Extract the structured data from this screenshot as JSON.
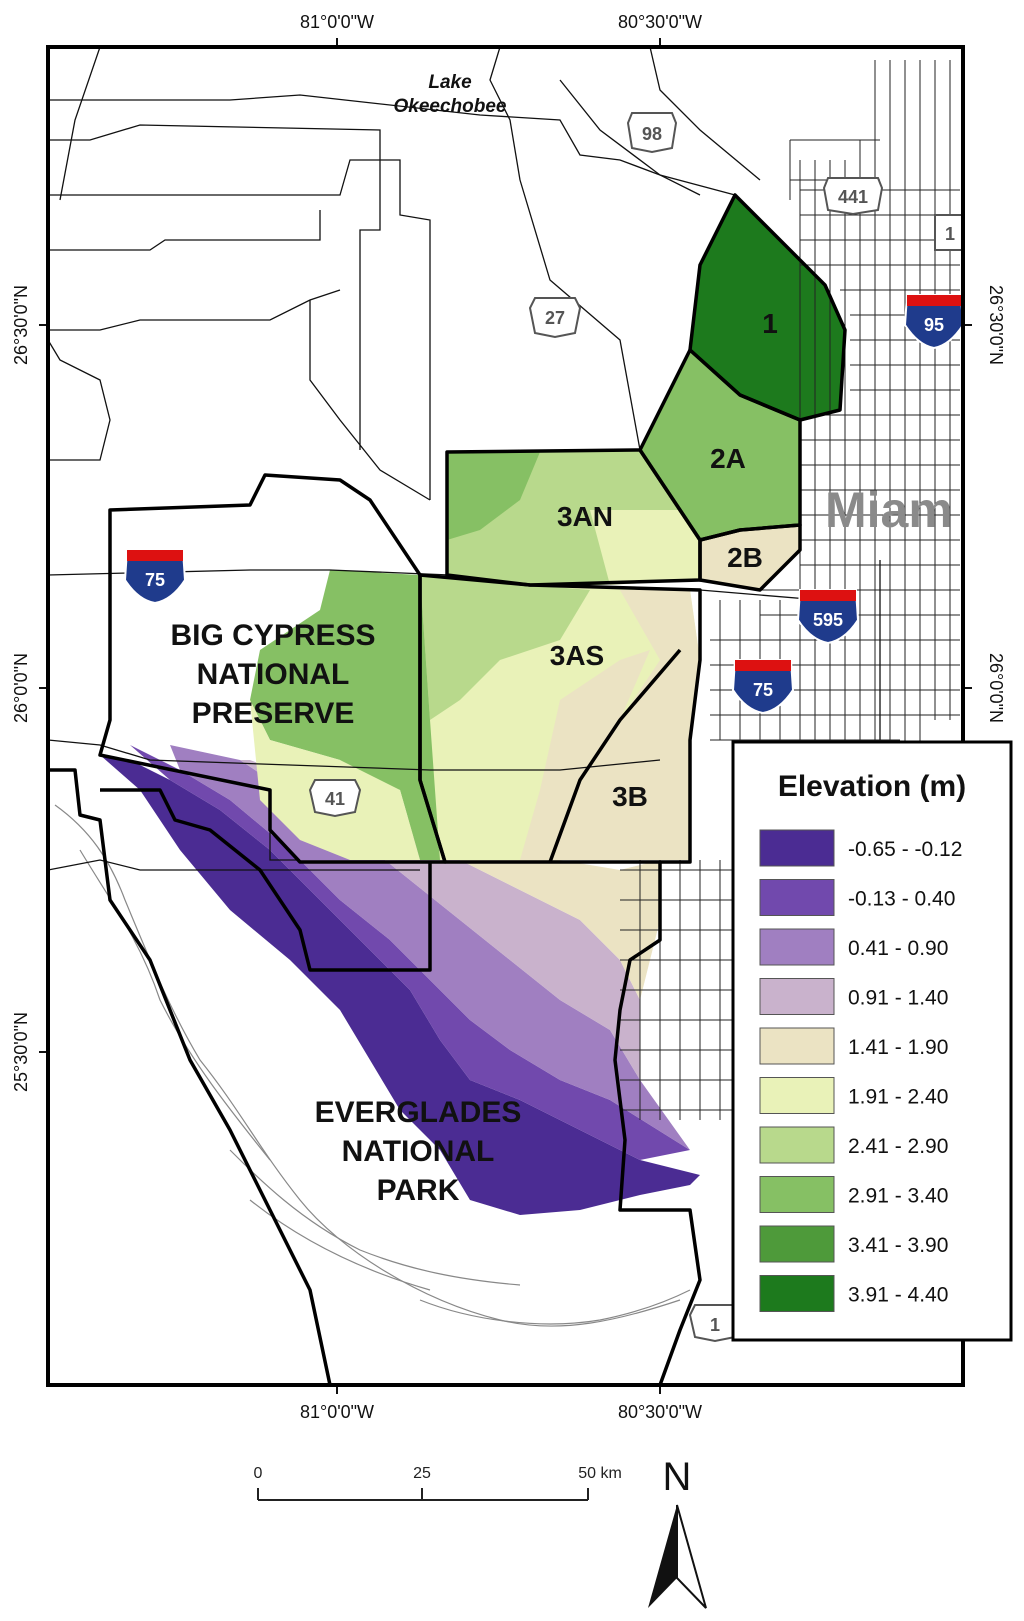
{
  "coords": {
    "lon_top_1": "81°0'0\"W",
    "lon_top_2": "80°30'0\"W",
    "lon_bot_1": "81°0'0\"W",
    "lon_bot_2": "80°30'0\"W",
    "lat_left_1": "26°30'0\"N",
    "lat_left_2": "26°0'0\"N",
    "lat_left_3": "25°30'0\"N",
    "lat_right_1": "26°30'0\"N",
    "lat_right_2": "26°0'0\"N"
  },
  "places": {
    "lake_line1": "Lake",
    "lake_line2": "Okeechobee",
    "miami": "Miam",
    "big_cypress_1": "BIG CYPRESS",
    "big_cypress_2": "NATIONAL",
    "big_cypress_3": "PRESERVE",
    "everglades_1": "EVERGLADES",
    "everglades_2": "NATIONAL",
    "everglades_3": "PARK"
  },
  "units": {
    "u1": "1",
    "u2a": "2A",
    "u2b": "2B",
    "u3an": "3AN",
    "u3as": "3AS",
    "u3b": "3B"
  },
  "highways": {
    "us98": "98",
    "us441": "441",
    "us27": "27",
    "us41": "41",
    "us1_north": "1",
    "us1_south": "1",
    "i95": "95",
    "i595": "595",
    "i75_west": "75",
    "i75_east": "75"
  },
  "legend": {
    "title": "Elevation (m)",
    "classes": [
      {
        "label": "-0.65 - -0.12",
        "color": "#4b2c93"
      },
      {
        "label": "-0.13 - 0.40",
        "color": "#7149ad"
      },
      {
        "label": "0.41 - 0.90",
        "color": "#a07fc1"
      },
      {
        "label": "0.91 - 1.40",
        "color": "#c9b2cc"
      },
      {
        "label": "1.41 - 1.90",
        "color": "#ebe3c3"
      },
      {
        "label": "1.91 - 2.40",
        "color": "#e9f2b8"
      },
      {
        "label": "2.41 - 2.90",
        "color": "#b8d98c"
      },
      {
        "label": "2.91 - 3.40",
        "color": "#86c064"
      },
      {
        "label": "3.41 - 3.90",
        "color": "#4e9a3a"
      },
      {
        "label": "3.91 - 4.40",
        "color": "#1d7a1d"
      }
    ]
  },
  "scale_bar": {
    "tick_0": "0",
    "tick_25": "25",
    "tick_50": "50 km"
  },
  "north_arrow": {
    "letter": "N"
  }
}
